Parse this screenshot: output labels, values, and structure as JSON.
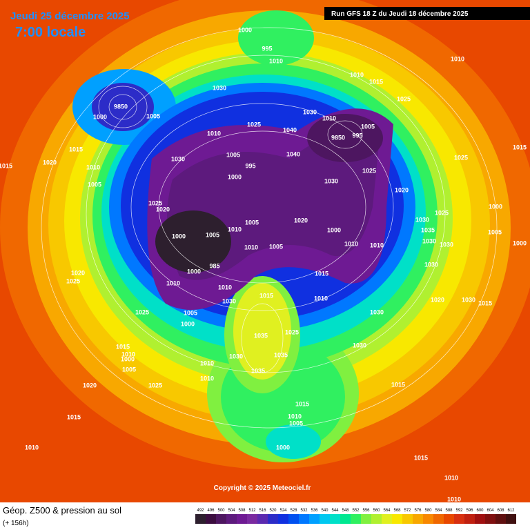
{
  "header": {
    "title": "Jeudi 25 décembre 2025",
    "time": "7:00 locale",
    "run": "Run GFS 18 Z du Jeudi 18 décembre 2025"
  },
  "map": {
    "copyright": "Copyright © 2025 Meteociel.fr",
    "pressure_labels": [
      "1000",
      "995",
      "1010",
      "1010",
      "1015",
      "1010",
      "1030",
      "1025",
      "9850",
      "1000",
      "1005",
      "1030",
      "1010",
      "1025",
      "1040",
      "1010",
      "9850",
      "995",
      "1005",
      "1015",
      "1030",
      "1005",
      "995",
      "1000",
      "1040",
      "1025",
      "1020",
      "1025",
      "1015",
      "1015",
      "1020",
      "1010",
      "1005",
      "1025",
      "1020",
      "1030",
      "1000",
      "1025",
      "1000",
      "1005",
      "1010",
      "1005",
      "1020",
      "1000",
      "1010",
      "1010",
      "1030",
      "1035",
      "1030",
      "1005",
      "1000",
      "1030",
      "1010",
      "1005",
      "1020",
      "1025",
      "985",
      "1000",
      "1010",
      "1010",
      "1015",
      "1015",
      "1010",
      "1030",
      "1020",
      "1030",
      "1015",
      "1025",
      "1030",
      "1030",
      "1005",
      "1000",
      "1035",
      "1025",
      "1030",
      "1015",
      "1010",
      "1000",
      "1005",
      "1035",
      "1030",
      "1010",
      "1010",
      "1035",
      "1025",
      "1020",
      "1015",
      "1015",
      "1015",
      "1010",
      "1005",
      "1000",
      "1010",
      "1015",
      "1010",
      "1010"
    ]
  },
  "footer": {
    "title": "Géop. Z500 & pression au sol",
    "lead": "(+ 156h)",
    "scale": {
      "labels": [
        492,
        496,
        500,
        504,
        508,
        512,
        516,
        520,
        524,
        528,
        532,
        536,
        540,
        544,
        548,
        552,
        556,
        560,
        564,
        568,
        572,
        576,
        580,
        584,
        588,
        592,
        596,
        600,
        604,
        608,
        612
      ],
      "colors": [
        "#2d1f2e",
        "#3b0d3f",
        "#4d1660",
        "#5d1a7d",
        "#6e1a93",
        "#7a2aa0",
        "#5b2ab0",
        "#2c2cc8",
        "#1030e0",
        "#0050f0",
        "#0078ff",
        "#00a0ff",
        "#00c8f0",
        "#00e0c8",
        "#00e890",
        "#30f060",
        "#80f040",
        "#b0f030",
        "#e0f020",
        "#f8e800",
        "#f8c800",
        "#f8a800",
        "#f88800",
        "#f06800",
        "#e84800",
        "#d83010",
        "#c02010",
        "#a01010",
        "#801010",
        "#601010",
        "#401010"
      ]
    }
  }
}
